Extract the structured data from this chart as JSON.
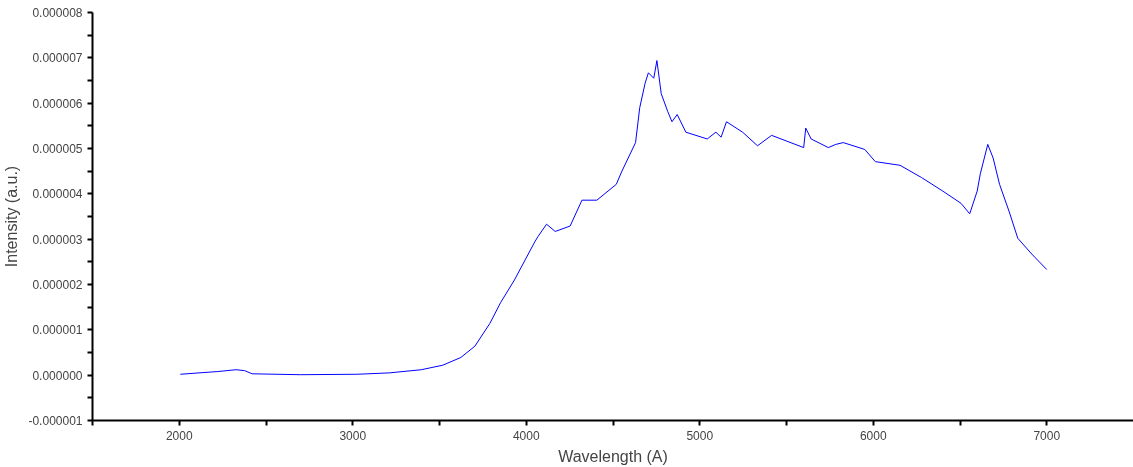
{
  "chart_data": {
    "type": "line",
    "xlabel": "Wavelength (A)",
    "ylabel": "Intensity (a.u.)",
    "x": [
      2006,
      2222,
      2327,
      2377,
      2420,
      2698,
      3025,
      3210,
      3395,
      3519,
      3623,
      3704,
      3790,
      3852,
      3932,
      4049,
      4068,
      4117,
      4167,
      4253,
      4321,
      4407,
      4519,
      4549,
      4630,
      4654,
      4685,
      4704,
      4735,
      4753,
      4778,
      4815,
      4840,
      4870,
      4920,
      5043,
      5093,
      5123,
      5154,
      5247,
      5333,
      5414,
      5599,
      5611,
      5642,
      5741,
      5784,
      5827,
      5951,
      6012,
      6154,
      6278,
      6401,
      6506,
      6556,
      6599,
      6617,
      6660,
      6691,
      6728,
      6784,
      6833,
      6914,
      7000
    ],
    "series": [
      {
        "color": "#0000ff",
        "values": [
          2e-08,
          8e-08,
          1.2e-07,
          1e-07,
          3e-08,
          1e-08,
          2e-08,
          5e-08,
          1.2e-07,
          2.2e-07,
          3.9e-07,
          6.4e-07,
          1.14e-06,
          1.6e-06,
          2.1e-06,
          2.94e-06,
          3.06e-06,
          3.33e-06,
          3.17e-06,
          3.29e-06,
          3.86e-06,
          3.86e-06,
          4.21e-06,
          4.48e-06,
          5.13e-06,
          5.9e-06,
          6.44e-06,
          6.67e-06,
          6.55e-06,
          6.94e-06,
          6.21e-06,
          5.82e-06,
          5.59e-06,
          5.75e-06,
          5.36e-06,
          5.21e-06,
          5.36e-06,
          5.25e-06,
          5.59e-06,
          5.36e-06,
          5.06e-06,
          5.29e-06,
          5.02e-06,
          5.45e-06,
          5.21e-06,
          5.02e-06,
          5.09e-06,
          5.13e-06,
          4.98e-06,
          4.71e-06,
          4.63e-06,
          4.36e-06,
          4.06e-06,
          3.79e-06,
          3.56e-06,
          4.06e-06,
          4.44e-06,
          5.09e-06,
          4.79e-06,
          4.21e-06,
          3.6e-06,
          3.02e-06,
          2.67e-06,
          2.33e-06
        ]
      }
    ],
    "xlim": [
      1500,
      7500
    ],
    "xticks": [
      {
        "value": 1500,
        "label": null
      },
      2000,
      {
        "value": 2500,
        "label": null
      },
      3000,
      {
        "value": 3500,
        "label": null
      },
      4000,
      {
        "value": 4500,
        "label": null
      },
      5000,
      {
        "value": 5500,
        "label": null
      },
      6000,
      {
        "value": 6500,
        "label": null
      },
      7000
    ],
    "ylim": [
      -1e-06,
      8e-06
    ],
    "yticks": [
      {
        "value": -1e-06,
        "label": "-0.000001"
      },
      {
        "value": -5e-07,
        "label": null
      },
      {
        "value": 0,
        "label": "0.000000"
      },
      {
        "value": 5e-07,
        "label": null
      },
      {
        "value": 1e-06,
        "label": "0.000001"
      },
      {
        "value": 1.5e-06,
        "label": null
      },
      {
        "value": 2e-06,
        "label": "0.000002"
      },
      {
        "value": 2.5e-06,
        "label": null
      },
      {
        "value": 3e-06,
        "label": "0.000003"
      },
      {
        "value": 3.5e-06,
        "label": null
      },
      {
        "value": 4e-06,
        "label": "0.000004"
      },
      {
        "value": 4.5e-06,
        "label": null
      },
      {
        "value": 5e-06,
        "label": "0.000005"
      },
      {
        "value": 5.5e-06,
        "label": null
      },
      {
        "value": 6e-06,
        "label": "0.000006"
      },
      {
        "value": 6.5e-06,
        "label": null
      },
      {
        "value": 7e-06,
        "label": "0.000007"
      },
      {
        "value": 7.5e-06,
        "label": null
      },
      {
        "value": 8e-06,
        "label": "0.000008"
      }
    ],
    "grid": false,
    "line_style": "solid",
    "marker": "none"
  }
}
